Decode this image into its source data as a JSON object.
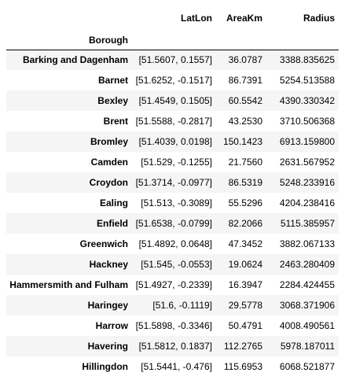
{
  "table": {
    "columns": [
      "LatLon",
      "AreaKm",
      "Radius"
    ],
    "index_name": "Borough",
    "rows": [
      {
        "borough": "Barking and Dagenham",
        "latlon": "[51.5607, 0.1557]",
        "areakm": "36.0787",
        "radius": "3388.835625"
      },
      {
        "borough": "Barnet",
        "latlon": "[51.6252, -0.1517]",
        "areakm": "86.7391",
        "radius": "5254.513588"
      },
      {
        "borough": "Bexley",
        "latlon": "[51.4549, 0.1505]",
        "areakm": "60.5542",
        "radius": "4390.330342"
      },
      {
        "borough": "Brent",
        "latlon": "[51.5588, -0.2817]",
        "areakm": "43.2530",
        "radius": "3710.506368"
      },
      {
        "borough": "Bromley",
        "latlon": "[51.4039, 0.0198]",
        "areakm": "150.1423",
        "radius": "6913.159800"
      },
      {
        "borough": "Camden",
        "latlon": "[51.529, -0.1255]",
        "areakm": "21.7560",
        "radius": "2631.567952"
      },
      {
        "borough": "Croydon",
        "latlon": "[51.3714, -0.0977]",
        "areakm": "86.5319",
        "radius": "5248.233916"
      },
      {
        "borough": "Ealing",
        "latlon": "[51.513, -0.3089]",
        "areakm": "55.5296",
        "radius": "4204.238416"
      },
      {
        "borough": "Enfield",
        "latlon": "[51.6538, -0.0799]",
        "areakm": "82.2066",
        "radius": "5115.385957"
      },
      {
        "borough": "Greenwich",
        "latlon": "[51.4892, 0.0648]",
        "areakm": "47.3452",
        "radius": "3882.067133"
      },
      {
        "borough": "Hackney",
        "latlon": "[51.545, -0.0553]",
        "areakm": "19.0624",
        "radius": "2463.280409"
      },
      {
        "borough": "Hammersmith and Fulham",
        "latlon": "[51.4927, -0.2339]",
        "areakm": "16.3947",
        "radius": "2284.424455"
      },
      {
        "borough": "Haringey",
        "latlon": "[51.6, -0.1119]",
        "areakm": "29.5778",
        "radius": "3068.371906"
      },
      {
        "borough": "Harrow",
        "latlon": "[51.5898, -0.3346]",
        "areakm": "50.4791",
        "radius": "4008.490561"
      },
      {
        "borough": "Havering",
        "latlon": "[51.5812, 0.1837]",
        "areakm": "112.2765",
        "radius": "5978.187011"
      },
      {
        "borough": "Hillingdon",
        "latlon": "[51.5441, -0.476]",
        "areakm": "115.6953",
        "radius": "6068.521877"
      }
    ]
  }
}
